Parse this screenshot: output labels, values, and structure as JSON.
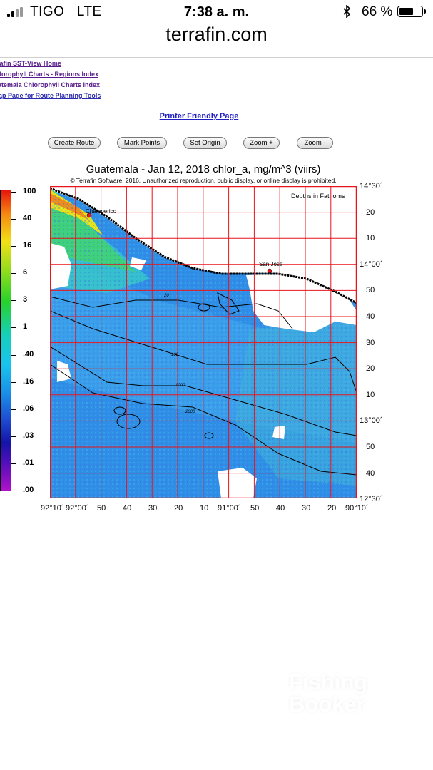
{
  "status_bar": {
    "carrier": "TIGO",
    "network": "LTE",
    "time": "7:38 a. m.",
    "battery_percent": "66 %",
    "battery_level": 0.66,
    "signal_bars_on": 2,
    "signal_bars_total": 4
  },
  "browser": {
    "url": "terrafin.com"
  },
  "nav_links": [
    "rafin SST-View Home",
    "hlorophyll Charts - Regions Index",
    "atemala Chlorophyll Charts Index",
    "ap Page for Route Planning Tools"
  ],
  "printer_link": "Printer Friendly Page",
  "toolbar": {
    "create_route": "Create Route",
    "mark_points": "Mark Points",
    "set_origin": "Set Origin",
    "zoom_in": "Zoom +",
    "zoom_out": "Zoom -"
  },
  "map": {
    "title": "Guatemala - Jan 12, 2018  chlor_a, mg/m^3 (viirs)",
    "copyright": "© Terrafin Software,  2016.  Unauthorized reproduction, public display, or online display is prohibited.",
    "legend_note": "Depths in Fathoms",
    "places": [
      "Champerico",
      "San Jose"
    ],
    "contour_labels": [
      "20",
      "100",
      "1000",
      "2000"
    ],
    "color_scale": [
      ".00",
      ".01",
      ".03",
      ".06",
      ".16",
      ".40",
      "1",
      "3",
      "6",
      "16",
      "40",
      "100"
    ],
    "lat_labels": [
      "14°30´",
      "20",
      "10",
      "14°00´",
      "50",
      "40",
      "30",
      "20",
      "10",
      "13°00´",
      "50",
      "40",
      "12°30´"
    ],
    "lon_labels": [
      "92°10´",
      "92°00´",
      "50",
      "40",
      "30",
      "20",
      "10",
      "91°00´",
      "50",
      "40",
      "30",
      "20",
      "90°10´"
    ],
    "colors": {
      "grid": "#e8141c",
      "land": "#ffffff",
      "water_blue": "#2f8fe6",
      "coastal_green": "#3fd07a",
      "nearshore": "#e9e416"
    }
  },
  "watermark": {
    "line1": "Fishing",
    "line2": "Booker"
  }
}
